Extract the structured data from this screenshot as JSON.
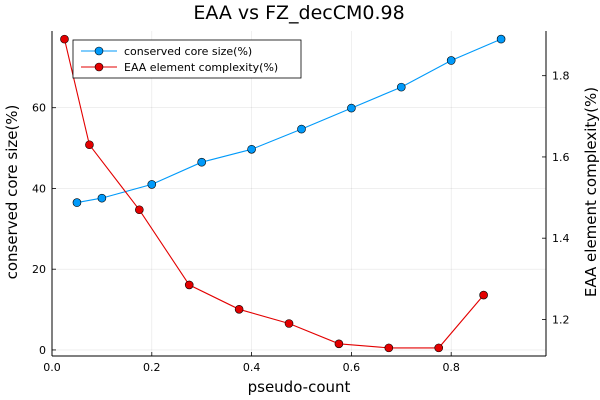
{
  "chart_data": {
    "type": "line",
    "title": "EAA vs FZ_decCM0.98",
    "xlabel": "pseudo-count",
    "ylabel_left": "conserved core size(%)",
    "ylabel_right": "EAA element complexity(%)",
    "xlim": [
      0,
      0.99
    ],
    "ylim_left": [
      -1.5,
      79
    ],
    "ylim_right": [
      1.11,
      1.91
    ],
    "x_ticks": [
      "0.0",
      "0.2",
      "0.4",
      "0.6",
      "0.8"
    ],
    "y_left_ticks": [
      "0",
      "20",
      "40",
      "60"
    ],
    "y_right_ticks": [
      "1.2",
      "1.4",
      "1.6",
      "1.8"
    ],
    "grid": true,
    "legend_position": "top-left",
    "series": [
      {
        "name": "conserved core size(%)",
        "axis": "left",
        "color": "#009AFA",
        "x": [
          0.05,
          0.1,
          0.2,
          0.3,
          0.4,
          0.5,
          0.6,
          0.7,
          0.8,
          0.9
        ],
        "y": [
          36.5,
          37.6,
          41.0,
          46.5,
          49.7,
          54.7,
          59.9,
          65.1,
          71.7,
          77.0
        ]
      },
      {
        "name": "EAA element complexity(%)",
        "axis": "right",
        "color": "#E30000",
        "x": [
          0.025,
          0.075,
          0.175,
          0.275,
          0.375,
          0.475,
          0.575,
          0.675,
          0.775,
          0.865
        ],
        "y": [
          1.89,
          1.63,
          1.47,
          1.285,
          1.225,
          1.19,
          1.14,
          1.13,
          1.13,
          1.26
        ]
      }
    ]
  }
}
